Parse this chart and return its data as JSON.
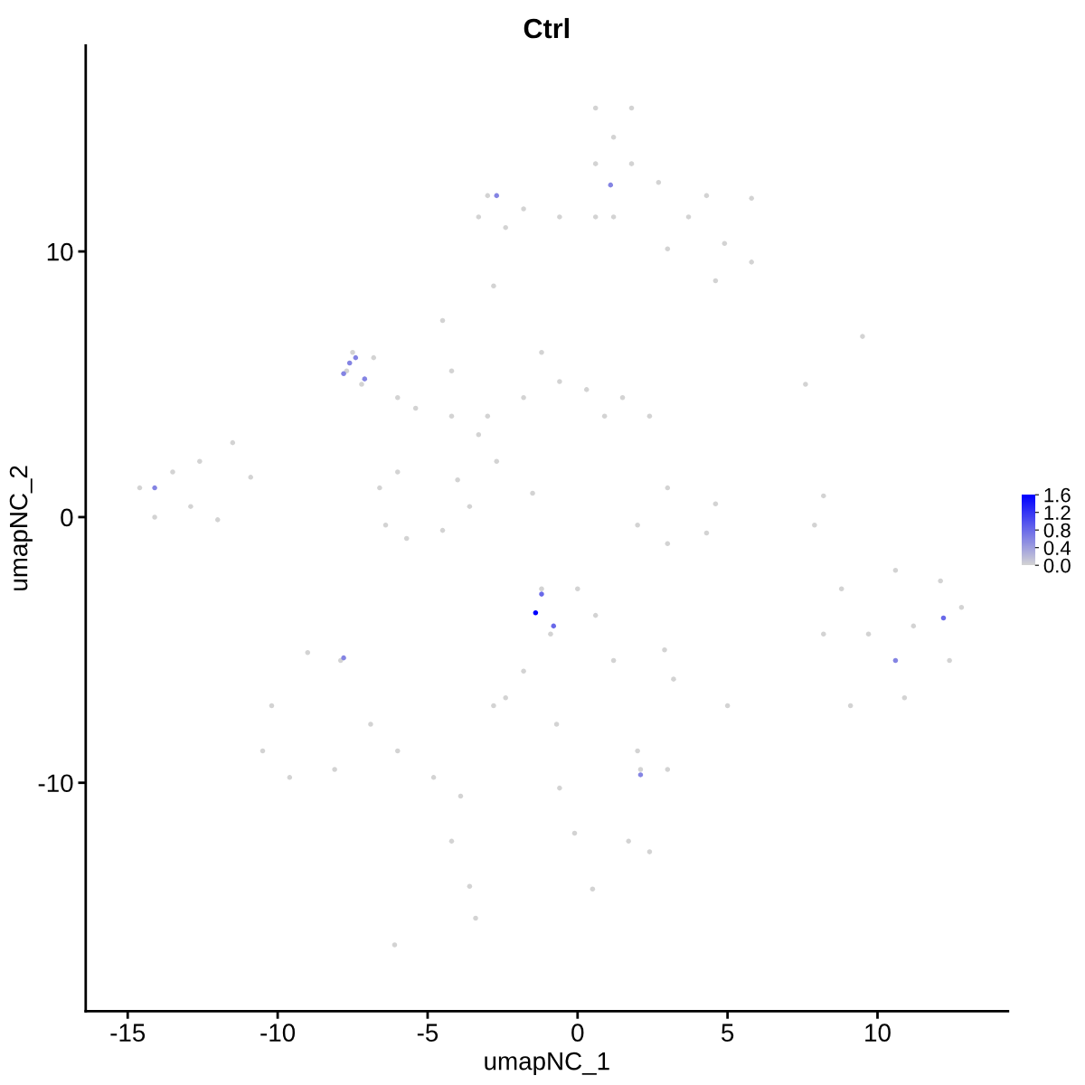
{
  "chart_data": {
    "type": "scatter",
    "title": "Ctrl",
    "xlabel": "umapNC_1",
    "ylabel": "umapNC_2",
    "x": [
      0.6,
      1.8,
      1.2,
      0.6,
      1.8,
      2.7,
      4.3,
      5.8,
      3.7,
      4.9,
      5.8,
      4.6,
      3.0,
      1.2,
      0.6,
      -0.6,
      -1.8,
      -3.0,
      -3.3,
      -2.4,
      -2.8,
      -1.2,
      -0.6,
      -1.8,
      0.3,
      1.5,
      2.4,
      0.9,
      -3.0,
      -4.2,
      -5.4,
      -4.5,
      -4.2,
      -3.3,
      -2.7,
      -1.5,
      -7.5,
      -7.7,
      -7.2,
      -6.8,
      -6.0,
      -14.6,
      -13.5,
      -12.6,
      -14.1,
      -12.9,
      -12.0,
      -11.5,
      -10.9,
      -6.6,
      -6.4,
      -5.7,
      -4.5,
      -3.6,
      -4.0,
      -6.0,
      2.0,
      3.0,
      4.3,
      4.6,
      3.0,
      7.9,
      8.2,
      8.2,
      8.8,
      10.6,
      12.1,
      12.8,
      12.4,
      10.9,
      9.1,
      9.7,
      11.2,
      -1.2,
      0.0,
      0.6,
      1.2,
      -0.9,
      -1.8,
      -2.4,
      -2.8,
      -9.0,
      -7.9,
      -10.2,
      -10.5,
      -9.6,
      -8.1,
      -6.9,
      -6.0,
      -4.8,
      -3.9,
      -4.2,
      -3.6,
      -3.4,
      -6.1,
      2.1,
      3.0,
      2.0,
      2.4,
      -0.7,
      -0.6,
      -0.1,
      0.5,
      2.9,
      5.0,
      3.2,
      7.6,
      9.5,
      1.7,
      -2.7,
      1.1,
      -7.8,
      -7.6,
      -7.4,
      -7.1,
      -14.1,
      -1.2,
      -0.8,
      -7.8,
      2.1,
      10.6,
      12.2,
      -1.4
    ],
    "values": [
      15.4,
      15.4,
      14.3,
      13.3,
      13.3,
      12.6,
      12.1,
      12.0,
      11.3,
      10.3,
      9.6,
      8.9,
      10.1,
      11.3,
      11.3,
      11.3,
      11.6,
      12.1,
      11.3,
      10.9,
      8.7,
      6.2,
      5.1,
      4.5,
      4.8,
      4.5,
      3.8,
      3.8,
      3.8,
      3.8,
      4.1,
      7.4,
      5.5,
      3.1,
      2.1,
      0.9,
      6.2,
      5.5,
      5.0,
      6.0,
      4.5,
      1.1,
      1.7,
      2.1,
      0.0,
      0.4,
      -0.1,
      2.8,
      1.5,
      1.1,
      -0.3,
      -0.8,
      -0.5,
      0.4,
      1.4,
      1.7,
      -0.3,
      -1.0,
      -0.6,
      0.5,
      1.1,
      -0.3,
      0.8,
      -4.4,
      -2.7,
      -2.0,
      -2.4,
      -3.4,
      -5.4,
      -6.8,
      -7.1,
      -4.4,
      -4.1,
      -2.7,
      -2.7,
      -3.7,
      -5.4,
      -4.4,
      -5.8,
      -6.8,
      -7.1,
      -5.1,
      -5.4,
      -7.1,
      -8.8,
      -9.8,
      -9.5,
      -7.8,
      -8.8,
      -9.8,
      -10.5,
      -12.2,
      -13.9,
      -15.1,
      -16.1,
      -9.5,
      -9.5,
      -8.8,
      -12.6,
      -7.8,
      -10.2,
      -11.9,
      -14.0,
      -5.0,
      -7.1,
      -6.1,
      5.0,
      6.8,
      -12.2,
      12.1,
      12.5,
      5.4,
      5.8,
      6.0,
      5.2,
      1.1,
      -2.9,
      -4.1,
      -5.3,
      -9.7,
      -5.4,
      -3.8,
      -3.6
    ],
    "cvalues": [
      0,
      0,
      0,
      0,
      0,
      0,
      0,
      0,
      0,
      0,
      0,
      0,
      0,
      0,
      0,
      0,
      0,
      0,
      0,
      0,
      0,
      0,
      0,
      0,
      0,
      0,
      0,
      0,
      0,
      0,
      0,
      0,
      0,
      0,
      0,
      0,
      0,
      0,
      0,
      0,
      0,
      0,
      0,
      0,
      0,
      0,
      0,
      0,
      0,
      0,
      0,
      0,
      0,
      0,
      0,
      0,
      0,
      0,
      0,
      0,
      0,
      0,
      0,
      0,
      0,
      0,
      0,
      0,
      0,
      0,
      0,
      0,
      0,
      0,
      0,
      0,
      0,
      0,
      0,
      0,
      0,
      0,
      0,
      0,
      0,
      0,
      0,
      0,
      0,
      0,
      0,
      0,
      0,
      0,
      0,
      0,
      0,
      0,
      0,
      0,
      0,
      0,
      0,
      0,
      0,
      0,
      0,
      0,
      0,
      0.6,
      0.6,
      0.6,
      0.6,
      0.6,
      0.6,
      0.6,
      0.8,
      0.8,
      0.6,
      0.6,
      0.6,
      0.8,
      1.6
    ],
    "xlim": [
      -16.4,
      14.35
    ],
    "ylim": [
      -18.6,
      17.75
    ],
    "xticks": [
      -15,
      -10,
      -5,
      0,
      5,
      10
    ],
    "yticks": [
      -10,
      0,
      10
    ],
    "clim": [
      0,
      1.6
    ],
    "cticks": [
      {
        "value": 0,
        "label": "0.0"
      },
      0.4,
      0.8,
      1.2,
      1.6
    ],
    "marker": "circle"
  }
}
